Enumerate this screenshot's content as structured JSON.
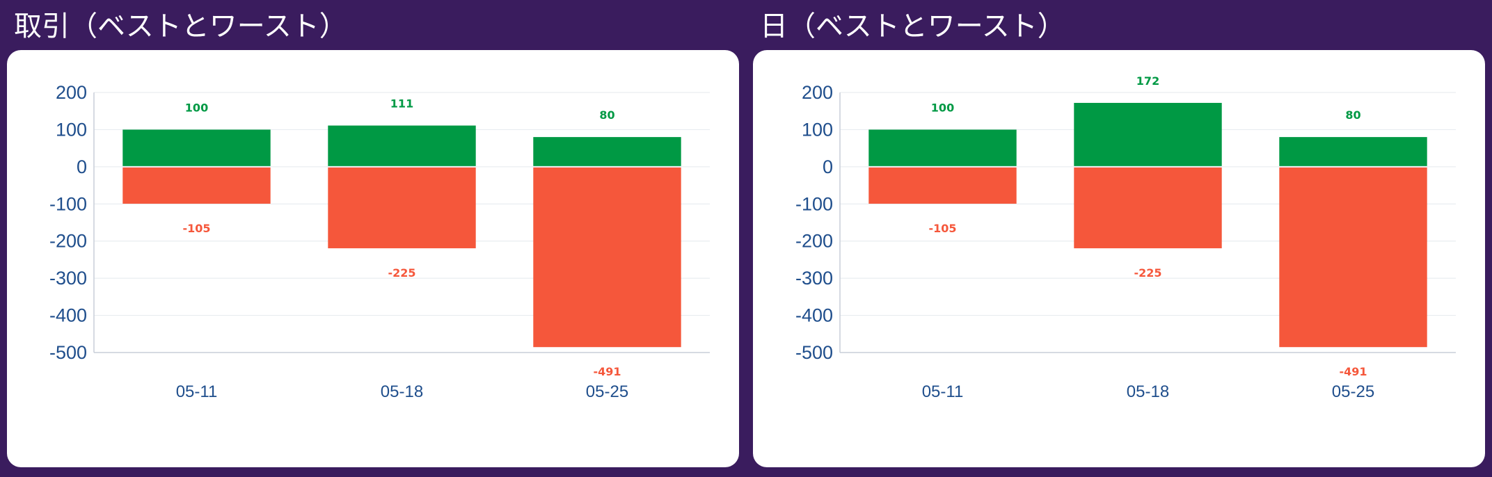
{
  "colors": {
    "background": "#3a1c5e",
    "card": "#ffffff",
    "best": "#009944",
    "worst": "#f5573b",
    "axis_text": "#1f4e8c"
  },
  "panels": [
    {
      "title": "取引（ベストとワースト）",
      "chart_data": {
        "type": "bar",
        "stacked_diverging": true,
        "categories": [
          "05-11",
          "05-18",
          "05-25"
        ],
        "series": [
          {
            "values": [
              100,
              111,
              80
            ],
            "color": "#009944"
          },
          {
            "values": [
              -105,
              -225,
              -491
            ],
            "color": "#f5573b"
          }
        ],
        "yticks": [
          200,
          100,
          0,
          -100,
          -200,
          -300,
          -400,
          -500
        ],
        "ylim": [
          -500,
          200
        ],
        "grid": true,
        "legend": "none"
      }
    },
    {
      "title": "日（ベストとワースト）",
      "chart_data": {
        "type": "bar",
        "stacked_diverging": true,
        "categories": [
          "05-11",
          "05-18",
          "05-25"
        ],
        "series": [
          {
            "values": [
              100,
              172,
              80
            ],
            "color": "#009944"
          },
          {
            "values": [
              -105,
              -225,
              -491
            ],
            "color": "#f5573b"
          }
        ],
        "yticks": [
          200,
          100,
          0,
          -100,
          -200,
          -300,
          -400,
          -500
        ],
        "ylim": [
          -500,
          200
        ],
        "grid": true,
        "legend": "none"
      }
    }
  ]
}
